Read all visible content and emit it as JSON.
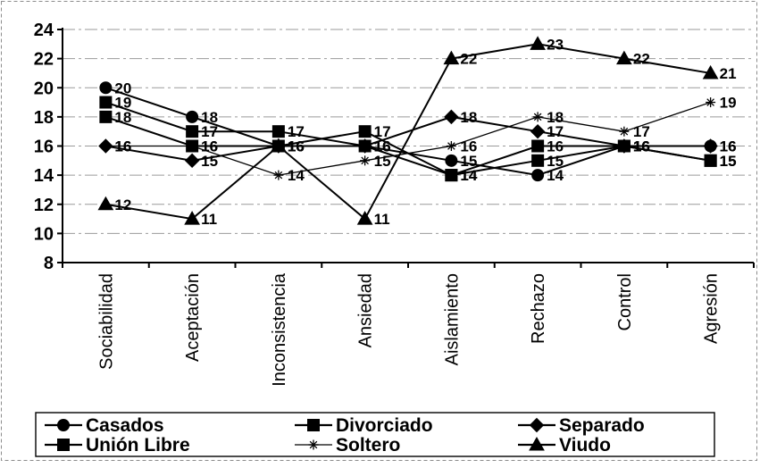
{
  "chart_data": {
    "type": "line",
    "title": "",
    "xlabel": "",
    "ylabel": "",
    "ylim": [
      8,
      24
    ],
    "yticks": [
      8,
      10,
      12,
      14,
      16,
      18,
      20,
      22,
      24
    ],
    "grid": true,
    "legend_position": "bottom",
    "categories": [
      "Sociabilidad",
      "Aceptación",
      "Inconsistencia",
      "Ansiedad",
      "Aislamiento",
      "Rechazo",
      "Control",
      "Agresión"
    ],
    "series": [
      {
        "name": "Casados",
        "marker": "circle",
        "values": [
          20,
          18,
          16,
          16,
          15,
          14,
          16,
          16
        ]
      },
      {
        "name": "Divorciado",
        "marker": "square",
        "values": [
          18,
          16,
          16,
          17,
          14,
          15,
          16,
          15
        ]
      },
      {
        "name": "Separado",
        "marker": "diamond",
        "values": [
          16,
          15,
          16,
          16,
          18,
          17,
          16,
          16
        ]
      },
      {
        "name": "Unión Libre",
        "marker": "square",
        "values": [
          19,
          17,
          17,
          16,
          14,
          16,
          16,
          15
        ]
      },
      {
        "name": "Soltero",
        "marker": "star",
        "values": [
          16,
          16,
          14,
          15,
          16,
          18,
          17,
          19
        ]
      },
      {
        "name": "Viudo",
        "marker": "triangle",
        "values": [
          12,
          11,
          16,
          11,
          22,
          23,
          22,
          21
        ]
      }
    ]
  }
}
